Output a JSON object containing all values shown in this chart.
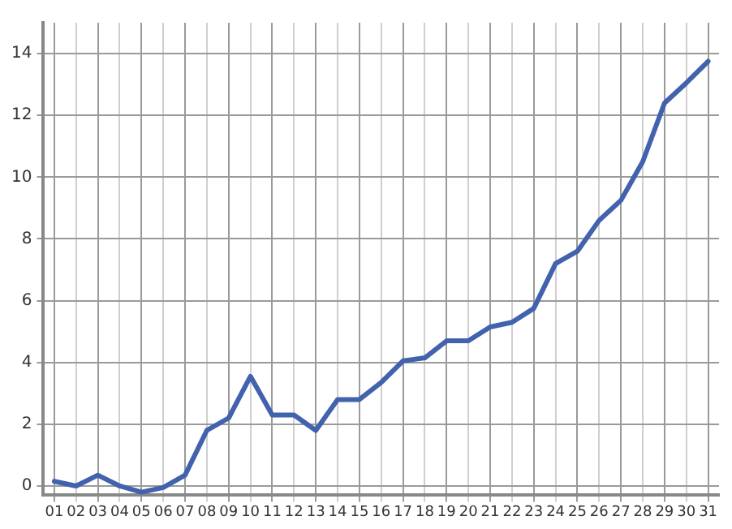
{
  "chart_data": {
    "type": "line",
    "categories": [
      "01",
      "02",
      "03",
      "04",
      "05",
      "06",
      "07",
      "08",
      "09",
      "10",
      "11",
      "12",
      "13",
      "14",
      "15",
      "16",
      "17",
      "18",
      "19",
      "20",
      "21",
      "22",
      "23",
      "24",
      "25",
      "26",
      "27",
      "28",
      "29",
      "30",
      "31"
    ],
    "series": [
      {
        "color": "#4262ae",
        "values": [
          0.15,
          0,
          0.35,
          0,
          -0.2,
          -0.05,
          0.35,
          1.8,
          2.2,
          3.55,
          2.3,
          2.3,
          1.8,
          2.8,
          2.8,
          3.35,
          4.05,
          4.15,
          4.7,
          4.7,
          5.15,
          5.3,
          5.75,
          7.2,
          7.6,
          8.6,
          9.25,
          10.5,
          12.4,
          13.05,
          13.75
        ]
      }
    ],
    "ylim": [
      -0.3,
      15
    ],
    "yticks": [
      0,
      2,
      4,
      6,
      8,
      10,
      12,
      14
    ],
    "grid": true,
    "legend": false,
    "marker": "none",
    "line_style": "solid"
  }
}
